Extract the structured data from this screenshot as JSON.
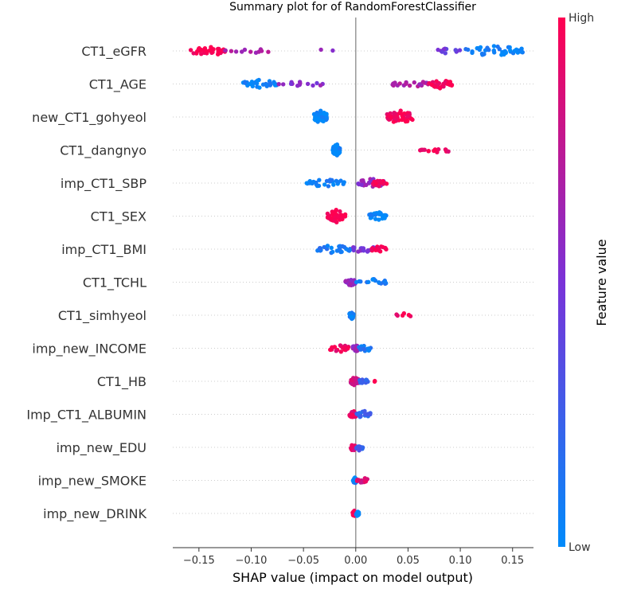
{
  "chart_data": {
    "type": "scatter",
    "title": "Summary plot for of RandomForestClassifier",
    "xlabel": "SHAP value (impact on model output)",
    "xlim": [
      -0.175,
      0.17
    ],
    "xticks": [
      -0.15,
      -0.1,
      -0.05,
      0.0,
      0.05,
      0.1,
      0.15
    ],
    "xtick_labels": [
      "−0.15",
      "−0.10",
      "−0.05",
      "0.00",
      "0.05",
      "0.10",
      "0.15"
    ],
    "grid": false,
    "colorbar": {
      "label": "Feature value",
      "high_label": "High",
      "low_label": "Low",
      "high_color": "#ff0051",
      "low_color": "#008bfb"
    },
    "features": [
      {
        "name": "CT1_eGFR",
        "clusters": [
          {
            "x": [
              -0.158,
              -0.125
            ],
            "color": 1.0,
            "n": 38
          },
          {
            "x": [
              -0.125,
              -0.075
            ],
            "color": 0.65,
            "n": 12
          },
          {
            "x": [
              -0.05,
              -0.015
            ],
            "color": 0.55,
            "n": 2
          },
          {
            "x": [
              0.075,
              0.105
            ],
            "color": 0.45,
            "n": 12
          },
          {
            "x": [
              0.105,
              0.16
            ],
            "color": 0.05,
            "n": 42
          }
        ]
      },
      {
        "name": "CT1_AGE",
        "clusters": [
          {
            "x": [
              -0.108,
              -0.075
            ],
            "color": 0.05,
            "n": 30
          },
          {
            "x": [
              -0.075,
              -0.03
            ],
            "color": 0.55,
            "n": 14
          },
          {
            "x": [
              0.035,
              0.07
            ],
            "color": 0.7,
            "n": 20
          },
          {
            "x": [
              0.07,
              0.092
            ],
            "color": 0.95,
            "n": 30
          }
        ]
      },
      {
        "name": "new_CT1_gohyeol",
        "clusters": [
          {
            "x": [
              -0.04,
              -0.027
            ],
            "color": 0.03,
            "n": 55
          },
          {
            "x": [
              0.03,
              0.055
            ],
            "color": 0.97,
            "n": 55
          }
        ]
      },
      {
        "name": "CT1_dangnyo",
        "clusters": [
          {
            "x": [
              -0.022,
              -0.015
            ],
            "color": 0.02,
            "n": 50
          },
          {
            "x": [
              0.06,
              0.093
            ],
            "color": 0.95,
            "n": 14
          }
        ]
      },
      {
        "name": "imp_CT1_SBP",
        "clusters": [
          {
            "x": [
              -0.047,
              -0.01
            ],
            "color": 0.05,
            "n": 28
          },
          {
            "x": [
              0.002,
              0.028
            ],
            "color": 0.6,
            "n": 30
          },
          {
            "x": [
              0.015,
              0.03
            ],
            "color": 0.95,
            "n": 16
          }
        ]
      },
      {
        "name": "CT1_SEX",
        "clusters": [
          {
            "x": [
              -0.027,
              -0.01
            ],
            "color": 1.0,
            "n": 50
          },
          {
            "x": [
              0.012,
              0.03
            ],
            "color": 0.02,
            "n": 28
          }
        ]
      },
      {
        "name": "imp_CT1_BMI",
        "clusters": [
          {
            "x": [
              -0.038,
              -0.005
            ],
            "color": 0.1,
            "n": 28
          },
          {
            "x": [
              -0.005,
              0.02
            ],
            "color": 0.5,
            "n": 20
          },
          {
            "x": [
              0.015,
              0.03
            ],
            "color": 0.95,
            "n": 16
          }
        ]
      },
      {
        "name": "CT1_TCHL",
        "clusters": [
          {
            "x": [
              -0.01,
              0.0
            ],
            "color": 0.6,
            "n": 22
          },
          {
            "x": [
              0.0,
              0.032
            ],
            "color": 0.08,
            "n": 18
          }
        ]
      },
      {
        "name": "CT1_simhyeol",
        "clusters": [
          {
            "x": [
              -0.006,
              -0.002
            ],
            "color": 0.05,
            "n": 30
          },
          {
            "x": [
              0.03,
              0.057
            ],
            "color": 0.97,
            "n": 6
          }
        ]
      },
      {
        "name": "imp_new_INCOME",
        "clusters": [
          {
            "x": [
              -0.025,
              -0.005
            ],
            "color": 0.95,
            "n": 22
          },
          {
            "x": [
              -0.003,
              0.003
            ],
            "color": 0.6,
            "n": 22
          },
          {
            "x": [
              0.003,
              0.016
            ],
            "color": 0.1,
            "n": 16
          }
        ]
      },
      {
        "name": "CT1_HB",
        "clusters": [
          {
            "x": [
              -0.005,
              0.003
            ],
            "color": 0.85,
            "n": 30
          },
          {
            "x": [
              0.003,
              0.012
            ],
            "color": 0.2,
            "n": 10
          },
          {
            "x": [
              0.016,
              0.019
            ],
            "color": 0.95,
            "n": 2
          }
        ]
      },
      {
        "name": "Imp_CT1_ALBUMIN",
        "clusters": [
          {
            "x": [
              -0.006,
              0.001
            ],
            "color": 0.9,
            "n": 24
          },
          {
            "x": [
              0.0,
              0.014
            ],
            "color": 0.2,
            "n": 22
          }
        ]
      },
      {
        "name": "imp_new_EDU",
        "clusters": [
          {
            "x": [
              -0.005,
              0.0
            ],
            "color": 0.9,
            "n": 22
          },
          {
            "x": [
              0.0,
              0.007
            ],
            "color": 0.25,
            "n": 18
          }
        ]
      },
      {
        "name": "imp_new_SMOKE",
        "clusters": [
          {
            "x": [
              -0.003,
              0.001
            ],
            "color": 0.05,
            "n": 20
          },
          {
            "x": [
              0.001,
              0.012
            ],
            "color": 0.85,
            "n": 14
          }
        ]
      },
      {
        "name": "imp_new_DRINK",
        "clusters": [
          {
            "x": [
              -0.003,
              0.0
            ],
            "color": 0.95,
            "n": 16
          },
          {
            "x": [
              0.0,
              0.003
            ],
            "color": 0.05,
            "n": 12
          }
        ]
      }
    ]
  }
}
